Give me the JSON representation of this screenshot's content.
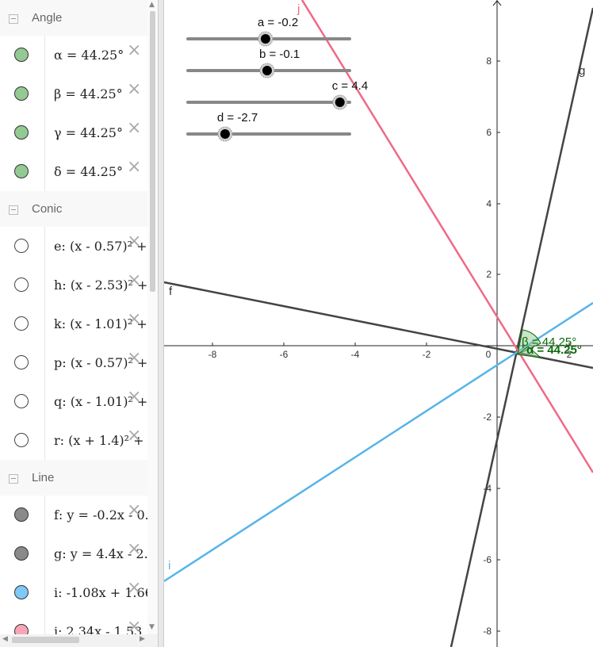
{
  "colors": {
    "angle_green": "#93c993",
    "line_gray": "#444444",
    "line_blue": "#56b4e9",
    "line_pink": "#ee6a87"
  },
  "algebra": {
    "groups": [
      {
        "label": "Angle",
        "items": [
          {
            "def": "α = 44.25°",
            "color": "#93c993",
            "filled": true
          },
          {
            "def": "β = 44.25°",
            "color": "#93c993",
            "filled": true
          },
          {
            "def": "γ = 44.25°",
            "color": "#93c993",
            "filled": true
          },
          {
            "def": "δ = 44.25°",
            "color": "#93c993",
            "filled": true
          }
        ]
      },
      {
        "label": "Conic",
        "items": [
          {
            "def": "e: (x - 0.57)² +",
            "color": "#ffffff",
            "filled": false
          },
          {
            "def": "h: (x - 2.53)² +",
            "color": "#ffffff",
            "filled": false
          },
          {
            "def": "k: (x - 1.01)² +",
            "color": "#ffffff",
            "filled": false
          },
          {
            "def": "p: (x - 0.57)² +",
            "color": "#ffffff",
            "filled": false
          },
          {
            "def": "q: (x - 1.01)² +",
            "color": "#ffffff",
            "filled": false
          },
          {
            "def": "r: (x + 1.4)² +",
            "color": "#ffffff",
            "filled": false
          }
        ]
      },
      {
        "label": "Line",
        "items": [
          {
            "def": "f: y = -0.2x - 0.",
            "color": "#8a8a8a",
            "filled": true
          },
          {
            "def": "g: y = 4.4x - 2.",
            "color": "#8a8a8a",
            "filled": true
          },
          {
            "def": "i: -1.08x + 1.66",
            "color": "#7fc8f8",
            "filled": true
          },
          {
            "def": "j: 2.34x - 1.53",
            "color": "#f7a6b8",
            "filled": true
          }
        ]
      }
    ],
    "delete_glyph": "×"
  },
  "sliders": [
    {
      "label": "a = -0.2",
      "value": -0.2
    },
    {
      "label": "b = -0.1",
      "value": -0.1
    },
    {
      "label": "c = 4.4",
      "value": 4.4
    },
    {
      "label": "d = -2.7",
      "value": -2.7
    }
  ],
  "graph": {
    "x_tick_labels": [
      "-8",
      "-6",
      "-4",
      "-2",
      "0",
      "2"
    ],
    "y_tick_labels": [
      "8",
      "6",
      "4",
      "2",
      "-2",
      "-4",
      "-6",
      "-8"
    ],
    "line_labels": {
      "f": "f",
      "g": "g",
      "i": "i",
      "j": "j"
    },
    "angle_labels": {
      "beta": "β = 44.25°",
      "alpha": "α = 44.25°"
    }
  }
}
